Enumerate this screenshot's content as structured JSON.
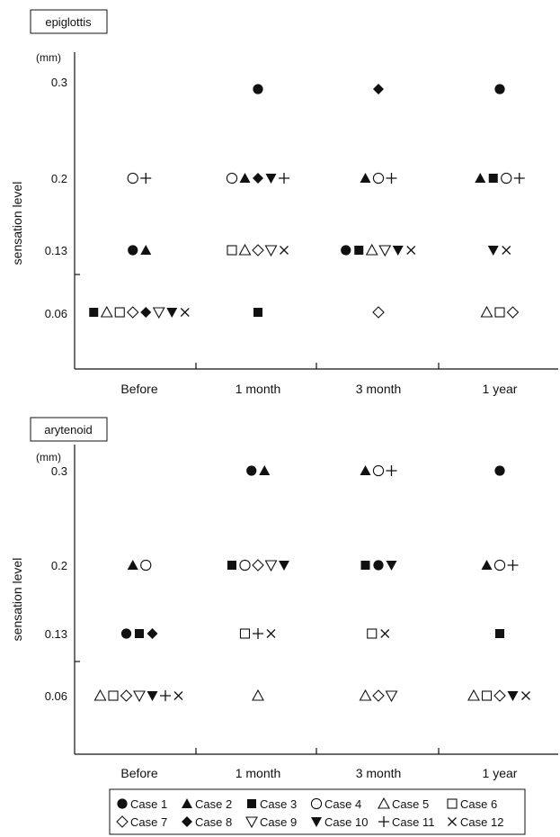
{
  "chart_data": [
    {
      "type": "scatter",
      "title": "epiglottis",
      "ylabel": "sensation level",
      "yunit": "(mm)",
      "categories": [
        "Before",
        "1 month",
        "3 month",
        "1 year"
      ],
      "yticks": [
        "0.3",
        "0.2",
        "0.13",
        "0.06"
      ],
      "points": [
        {
          "x": "Before",
          "y": "0.2",
          "cases": [
            "Case 4",
            "Case 11"
          ]
        },
        {
          "x": "Before",
          "y": "0.13",
          "cases": [
            "Case 1",
            "Case 2"
          ]
        },
        {
          "x": "Before",
          "y": "0.06",
          "cases": [
            "Case 3",
            "Case 5",
            "Case 6",
            "Case 7",
            "Case 8",
            "Case 9",
            "Case 10",
            "Case 12"
          ]
        },
        {
          "x": "1 month",
          "y": "0.3",
          "cases": [
            "Case 1"
          ]
        },
        {
          "x": "1 month",
          "y": "0.2",
          "cases": [
            "Case 4",
            "Case 2",
            "Case 8",
            "Case 10",
            "Case 11"
          ]
        },
        {
          "x": "1 month",
          "y": "0.13",
          "cases": [
            "Case 6",
            "Case 5",
            "Case 7",
            "Case 9",
            "Case 12"
          ]
        },
        {
          "x": "1 month",
          "y": "0.06",
          "cases": [
            "Case 3"
          ]
        },
        {
          "x": "3 month",
          "y": "0.3",
          "cases": [
            "Case 8"
          ]
        },
        {
          "x": "3 month",
          "y": "0.2",
          "cases": [
            "Case 2",
            "Case 4",
            "Case 11"
          ]
        },
        {
          "x": "3 month",
          "y": "0.13",
          "cases": [
            "Case 1",
            "Case 3",
            "Case 5",
            "Case 9",
            "Case 10",
            "Case 12"
          ]
        },
        {
          "x": "3 month",
          "y": "0.06",
          "cases": [
            "Case 7"
          ]
        },
        {
          "x": "1 year",
          "y": "0.3",
          "cases": [
            "Case 1"
          ]
        },
        {
          "x": "1 year",
          "y": "0.2",
          "cases": [
            "Case 2",
            "Case 3",
            "Case 4",
            "Case 11"
          ]
        },
        {
          "x": "1 year",
          "y": "0.13",
          "cases": [
            "Case 10",
            "Case 12"
          ]
        },
        {
          "x": "1 year",
          "y": "0.06",
          "cases": [
            "Case 5",
            "Case 6",
            "Case 7"
          ]
        }
      ]
    },
    {
      "type": "scatter",
      "title": "arytenoid",
      "ylabel": "sensation level",
      "yunit": "(mm)",
      "categories": [
        "Before",
        "1 month",
        "3 month",
        "1 year"
      ],
      "yticks": [
        "0.3",
        "0.2",
        "0.13",
        "0.06"
      ],
      "points": [
        {
          "x": "Before",
          "y": "0.2",
          "cases": [
            "Case 2",
            "Case 4"
          ]
        },
        {
          "x": "Before",
          "y": "0.13",
          "cases": [
            "Case 1",
            "Case 3",
            "Case 8"
          ]
        },
        {
          "x": "Before",
          "y": "0.06",
          "cases": [
            "Case 5",
            "Case 6",
            "Case 7",
            "Case 9",
            "Case 10",
            "Case 11",
            "Case 12"
          ]
        },
        {
          "x": "1 month",
          "y": "0.3",
          "cases": [
            "Case 1",
            "Case 2"
          ]
        },
        {
          "x": "1 month",
          "y": "0.2",
          "cases": [
            "Case 3",
            "Case 4",
            "Case 7",
            "Case 9",
            "Case 10"
          ]
        },
        {
          "x": "1 month",
          "y": "0.13",
          "cases": [
            "Case 6",
            "Case 11",
            "Case 12"
          ]
        },
        {
          "x": "1 month",
          "y": "0.06",
          "cases": [
            "Case 5"
          ]
        },
        {
          "x": "3 month",
          "y": "0.3",
          "cases": [
            "Case 2",
            "Case 4",
            "Case 11"
          ]
        },
        {
          "x": "3 month",
          "y": "0.2",
          "cases": [
            "Case 3",
            "Case 1",
            "Case 10"
          ]
        },
        {
          "x": "3 month",
          "y": "0.13",
          "cases": [
            "Case 6",
            "Case 12"
          ]
        },
        {
          "x": "3 month",
          "y": "0.06",
          "cases": [
            "Case 5",
            "Case 7",
            "Case 9"
          ]
        },
        {
          "x": "1 year",
          "y": "0.3",
          "cases": [
            "Case 1"
          ]
        },
        {
          "x": "1 year",
          "y": "0.2",
          "cases": [
            "Case 2",
            "Case 4",
            "Case 11"
          ]
        },
        {
          "x": "1 year",
          "y": "0.13",
          "cases": [
            "Case 3"
          ]
        },
        {
          "x": "1 year",
          "y": "0.06",
          "cases": [
            "Case 5",
            "Case 6",
            "Case 7",
            "Case 10",
            "Case 12"
          ]
        }
      ]
    }
  ],
  "legend": {
    "items": [
      {
        "label": "Case 1",
        "symbol": "●"
      },
      {
        "label": "Case 2",
        "symbol": "▲"
      },
      {
        "label": "Case 3",
        "symbol": "■"
      },
      {
        "label": "Case 4",
        "symbol": "○"
      },
      {
        "label": "Case 5",
        "symbol": "△"
      },
      {
        "label": "Case 6",
        "symbol": "□"
      },
      {
        "label": "Case 7",
        "symbol": "◇"
      },
      {
        "label": "Case 8",
        "symbol": "◆"
      },
      {
        "label": "Case 9",
        "symbol": "▽"
      },
      {
        "label": "Case 10",
        "symbol": "▼"
      },
      {
        "label": "Case 11",
        "symbol": "+"
      },
      {
        "label": "Case 12",
        "symbol": "×"
      }
    ]
  }
}
